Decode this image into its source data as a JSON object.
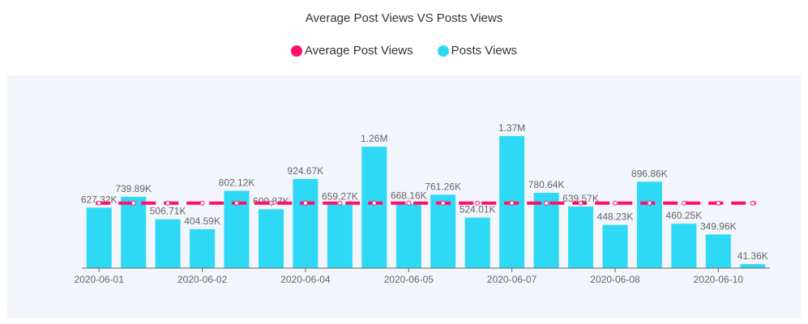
{
  "chart_data": {
    "type": "bar",
    "title": "Average Post Views VS Posts Views",
    "legend": [
      {
        "name": "Average Post Views",
        "color": "#ff0f6b"
      },
      {
        "name": "Posts Views",
        "color": "#2ed9f5"
      }
    ],
    "categories": [
      "",
      "",
      "",
      "",
      "",
      "",
      "",
      "",
      "",
      "",
      "",
      "",
      "",
      "",
      "",
      "",
      "",
      "",
      "",
      ""
    ],
    "x_tick_labels": [
      "2020-06-01",
      "2020-06-02",
      "2020-06-04",
      "2020-06-05",
      "2020-06-07",
      "2020-06-08",
      "2020-06-10"
    ],
    "x_tick_positions": [
      0,
      3,
      6,
      9,
      12,
      15,
      18
    ],
    "series": [
      {
        "name": "Posts Views",
        "type": "bar",
        "color": "#2ed9f5",
        "values": [
          627320,
          739890,
          506710,
          404590,
          802120,
          609870,
          924670,
          659270,
          1260000,
          668160,
          761260,
          524010,
          1370000,
          780640,
          639570,
          448230,
          896860,
          460250,
          349960,
          41360
        ],
        "labels": [
          "627.32K",
          "739.89K",
          "506.71K",
          "404.59K",
          "802.12K",
          "609.87K",
          "924.67K",
          "659.27K",
          "1.26M",
          "668.16K",
          "761.26K",
          "524.01K",
          "1.37M",
          "780.64K",
          "639.57K",
          "448.23K",
          "896.86K",
          "460.25K",
          "349.96K",
          "41.36K"
        ]
      },
      {
        "name": "Average Post Views",
        "type": "line",
        "style": "dashed",
        "color": "#ff0f6b",
        "value": 675000
      }
    ],
    "ylim": [
      0,
      1500000
    ],
    "xlabel": "",
    "ylabel": ""
  }
}
